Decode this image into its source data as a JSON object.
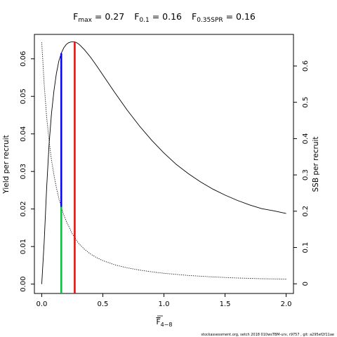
{
  "chart_data": {
    "type": "line",
    "title_parts": [
      {
        "main": "F",
        "sub": "max",
        "rest": " = 0.27"
      },
      {
        "main": "F",
        "sub": "0.1",
        "rest": " = 0.16"
      },
      {
        "main": "F",
        "sub": "0.35SPR",
        "rest": " = 0.16"
      }
    ],
    "xlabel": {
      "main": "F",
      "sub": "4−8"
    },
    "ylabel_left": "Yield per recruit",
    "ylabel_right": "SSB per recruit",
    "footer": "stockassessment.org, setch 2018 010wsTBM-urv, r9757 , git: a295ef2f11ae",
    "xlim": [
      -0.06,
      2.06
    ],
    "ylim_left": [
      -0.0025,
      0.0665
    ],
    "ylim_right": [
      -0.0266,
      0.687
    ],
    "x_ticks": [
      0,
      0.5,
      1,
      1.5,
      2
    ],
    "x_tick_labels": [
      "0.0",
      "0.5",
      "1.0",
      "1.5",
      "2.0"
    ],
    "y_ticks_left": [
      0,
      0.01,
      0.02,
      0.03,
      0.04,
      0.05,
      0.06
    ],
    "y_tick_labels_left": [
      "0.00",
      "0.01",
      "0.02",
      "0.03",
      "0.04",
      "0.05",
      "0.06"
    ],
    "y_ticks_right": [
      0,
      0.1,
      0.2,
      0.3,
      0.4,
      0.5,
      0.6
    ],
    "y_tick_labels_right": [
      "0",
      "0.1",
      "0.2",
      "0.3",
      "0.4",
      "0.5",
      "0.6"
    ],
    "series": [
      {
        "axis": "left",
        "style": "solid",
        "color": "#000000",
        "x": [
          0,
          0.02,
          0.04,
          0.06,
          0.08,
          0.1,
          0.12,
          0.14,
          0.16,
          0.18,
          0.2,
          0.22,
          0.24,
          0.26,
          0.27,
          0.28,
          0.3,
          0.32,
          0.35,
          0.4,
          0.45,
          0.5,
          0.6,
          0.7,
          0.8,
          0.9,
          1.0,
          1.1,
          1.2,
          1.3,
          1.4,
          1.5,
          1.6,
          1.7,
          1.8,
          1.9,
          2.0
        ],
        "y": [
          0,
          0.0112,
          0.0255,
          0.0372,
          0.0455,
          0.0515,
          0.0561,
          0.0594,
          0.0615,
          0.0629,
          0.0638,
          0.0643,
          0.0645,
          0.0645,
          0.0645,
          0.0644,
          0.064,
          0.0634,
          0.0624,
          0.0604,
          0.0581,
          0.0557,
          0.0509,
          0.0463,
          0.0421,
          0.0383,
          0.0349,
          0.0319,
          0.0294,
          0.0272,
          0.0253,
          0.0237,
          0.0223,
          0.0211,
          0.0201,
          0.0195,
          0.0188
        ]
      },
      {
        "axis": "right",
        "style": "dotted",
        "color": "#000000",
        "x": [
          0,
          0.02,
          0.04,
          0.06,
          0.08,
          0.1,
          0.12,
          0.14,
          0.16,
          0.18,
          0.2,
          0.25,
          0.3,
          0.35,
          0.4,
          0.45,
          0.5,
          0.6,
          0.7,
          0.8,
          0.9,
          1.0,
          1.2,
          1.4,
          1.6,
          1.8,
          2.0
        ],
        "y": [
          0.665,
          0.55,
          0.46,
          0.395,
          0.34,
          0.3,
          0.265,
          0.235,
          0.212,
          0.19,
          0.173,
          0.138,
          0.112,
          0.095,
          0.082,
          0.072,
          0.064,
          0.052,
          0.044,
          0.038,
          0.033,
          0.029,
          0.023,
          0.019,
          0.016,
          0.014,
          0.013
        ]
      }
    ],
    "reference_lines": [
      {
        "name": "F0.1",
        "axis": "left",
        "x": 0.16,
        "y_from": -0.0025,
        "y_to": 0.0615,
        "color": "#0000ff"
      },
      {
        "name": "F0.35SPR",
        "axis": "right",
        "x": 0.16,
        "y_from": -0.0266,
        "y_to": 0.212,
        "color": "#00cc33"
      },
      {
        "name": "Fmax",
        "axis": "left",
        "x": 0.27,
        "y_from": -0.0025,
        "y_to": 0.0645,
        "color": "#ff0000"
      }
    ]
  }
}
